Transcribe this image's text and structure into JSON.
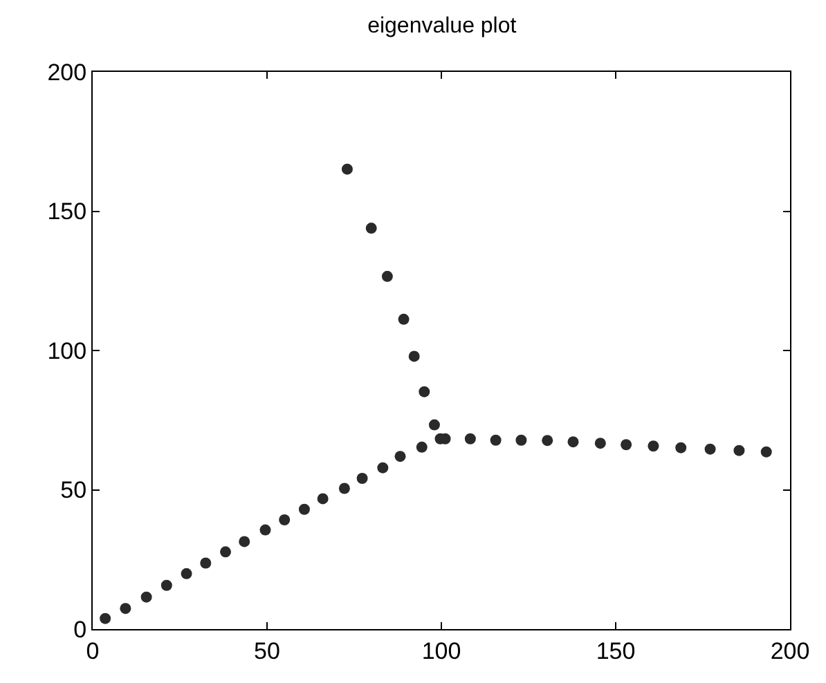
{
  "chart_data": {
    "type": "scatter",
    "title": "eigenvalue plot",
    "marker": "circle",
    "grid": false,
    "xlim": [
      0,
      200
    ],
    "xticks": [
      0,
      50,
      100,
      150,
      200
    ],
    "ylim": [
      0,
      200
    ],
    "yticks": [
      0,
      50,
      100,
      150,
      200
    ],
    "series": [
      {
        "color": "#2a2a2a",
        "x": [
          3.6,
          9.4,
          15.4,
          21.2,
          26.9,
          32.4,
          38.1,
          43.5,
          49.5,
          55.0,
          60.7,
          66.0,
          72.2,
          77.3,
          83.2,
          88.2,
          94.4,
          99.7,
          73.0,
          79.9,
          84.5,
          89.2,
          92.2,
          95.1,
          98.0,
          101.1,
          108.3,
          115.6,
          122.9,
          130.4,
          137.8,
          145.6,
          153.0,
          160.8,
          168.7,
          177.1,
          185.4,
          193.2
        ],
        "values": [
          3.8,
          7.4,
          11.5,
          15.7,
          19.9,
          23.7,
          27.7,
          31.4,
          35.6,
          39.2,
          43.0,
          46.8,
          50.5,
          54.1,
          57.9,
          62.0,
          65.3,
          68.3,
          165.1,
          143.9,
          126.6,
          111.2,
          97.9,
          85.2,
          73.3,
          68.3,
          68.3,
          67.8,
          67.8,
          67.7,
          67.2,
          66.7,
          66.2,
          65.7,
          65.1,
          64.6,
          64.1,
          63.6
        ]
      }
    ]
  }
}
